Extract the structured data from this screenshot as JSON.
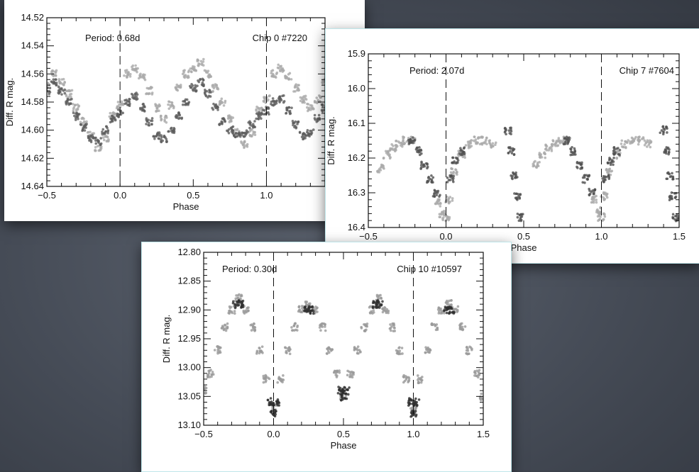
{
  "chart_data": [
    {
      "type": "scatter",
      "period_label": "Period: 0.68d",
      "chip_label": "Chip 0 #7220",
      "xlabel": "Phase",
      "ylabel": "Diff. R mag.",
      "xlim": [
        -0.5,
        1.4
      ],
      "ylim": [
        14.64,
        14.52
      ],
      "y_inverted": true,
      "xticks": [
        -0.5,
        0.0,
        0.5,
        1.0
      ],
      "xtick_labels": [
        "-0.5",
        "0.0",
        "0.5",
        "1.0"
      ],
      "yticks": [
        14.52,
        14.54,
        14.56,
        14.58,
        14.6,
        14.62,
        14.64
      ],
      "ytick_labels": [
        "14.52",
        "14.54",
        "14.56",
        "14.58",
        "14.60",
        "14.62",
        "14.64"
      ],
      "vlines": [
        0.0,
        1.0
      ],
      "series": [
        {
          "color": "#aaaaaa",
          "x": [
            -0.5,
            -0.45,
            -0.4,
            -0.35,
            -0.3,
            -0.25,
            -0.2,
            -0.15,
            -0.1,
            -0.05,
            0.0,
            0.05,
            0.1,
            0.15,
            0.2,
            0.25,
            0.3,
            0.35,
            0.4,
            0.45,
            0.5,
            0.55,
            0.6,
            0.65,
            0.7,
            0.75,
            0.8,
            0.85,
            0.9,
            0.95,
            1.0,
            1.05,
            1.1,
            1.15,
            1.2,
            1.25,
            1.3,
            1.35,
            1.4
          ],
          "y": [
            14.568,
            14.56,
            14.566,
            14.574,
            14.584,
            14.594,
            14.604,
            14.612,
            14.606,
            14.59,
            14.582,
            14.56,
            14.556,
            14.562,
            14.572,
            14.584,
            14.592,
            14.582,
            14.57,
            14.56,
            14.556,
            14.552,
            14.56,
            14.57,
            14.58,
            14.592,
            14.602,
            14.61,
            14.602,
            14.586,
            14.578,
            14.56,
            14.556,
            14.562,
            14.57,
            14.578,
            14.584,
            14.578,
            14.566
          ]
        },
        {
          "color": "#5c5c5c",
          "x": [
            -0.5,
            -0.45,
            -0.4,
            -0.35,
            -0.3,
            -0.25,
            -0.2,
            -0.15,
            -0.1,
            -0.05,
            0.0,
            0.05,
            0.1,
            0.15,
            0.2,
            0.25,
            0.3,
            0.35,
            0.4,
            0.45,
            0.5,
            0.55,
            0.6,
            0.65,
            0.7,
            0.75,
            0.8,
            0.85,
            0.9,
            0.95,
            1.0,
            1.05,
            1.1,
            1.15,
            1.2,
            1.25,
            1.3,
            1.35,
            1.4
          ],
          "y": [
            14.572,
            14.566,
            14.572,
            14.58,
            14.59,
            14.598,
            14.606,
            14.608,
            14.6,
            14.592,
            14.588,
            14.58,
            14.576,
            14.584,
            14.594,
            14.604,
            14.606,
            14.6,
            14.59,
            14.58,
            14.57,
            14.566,
            14.574,
            14.584,
            14.594,
            14.6,
            14.604,
            14.602,
            14.596,
            14.59,
            14.586,
            14.58,
            14.578,
            14.586,
            14.596,
            14.604,
            14.602,
            14.592,
            14.584
          ]
        }
      ]
    },
    {
      "type": "scatter",
      "period_label": "Period: 2.07d",
      "chip_label": "Chip 7 #7604",
      "xlabel": "Phase",
      "ylabel": "Diff. R mag.",
      "xlim": [
        -0.5,
        1.5
      ],
      "ylim": [
        16.4,
        15.9
      ],
      "y_inverted": true,
      "xticks": [
        -0.5,
        0.0,
        0.5,
        1.0,
        1.5
      ],
      "xtick_labels": [
        "-0.5",
        "0.0",
        "0.5",
        "1.0",
        "1.5"
      ],
      "yticks": [
        15.9,
        16.0,
        16.1,
        16.2,
        16.3,
        16.4
      ],
      "ytick_labels": [
        "15.9",
        "16.0",
        "16.1",
        "16.2",
        "16.3",
        "16.4"
      ],
      "vlines": [
        0.0,
        1.0
      ],
      "series": [
        {
          "color": "#aaaaaa",
          "x": [
            -0.42,
            -0.38,
            -0.34,
            -0.3,
            -0.26,
            -0.22,
            -0.05,
            -0.02,
            0.0,
            0.02,
            0.05,
            0.1,
            0.15,
            0.2,
            0.25,
            0.3,
            0.58,
            0.62,
            0.66,
            0.7,
            0.74,
            0.78,
            0.95,
            0.98,
            1.0,
            1.02,
            1.05,
            1.1,
            1.15,
            1.2,
            1.25,
            1.3
          ],
          "y": [
            16.23,
            16.19,
            16.17,
            16.16,
            16.15,
            16.15,
            16.33,
            16.36,
            16.37,
            16.32,
            16.24,
            16.19,
            16.16,
            16.15,
            16.15,
            16.16,
            16.22,
            16.19,
            16.17,
            16.16,
            16.15,
            16.15,
            16.32,
            16.35,
            16.37,
            16.31,
            16.24,
            16.19,
            16.16,
            16.15,
            16.15,
            16.16
          ]
        },
        {
          "color": "#505050",
          "x": [
            -0.22,
            -0.18,
            -0.14,
            -0.1,
            -0.06,
            0.03,
            0.06,
            0.1,
            0.4,
            0.42,
            0.44,
            0.46,
            0.48,
            0.78,
            0.82,
            0.86,
            0.9,
            0.94,
            1.03,
            1.06,
            1.1,
            1.4,
            1.42,
            1.44,
            1.46,
            1.48
          ],
          "y": [
            16.15,
            16.18,
            16.22,
            16.26,
            16.3,
            16.26,
            16.21,
            16.18,
            16.12,
            16.18,
            16.25,
            16.31,
            16.37,
            16.15,
            16.18,
            16.22,
            16.26,
            16.3,
            16.26,
            16.21,
            16.18,
            16.12,
            16.18,
            16.25,
            16.31,
            16.37
          ]
        }
      ]
    },
    {
      "type": "scatter",
      "period_label": "Period: 0.30d",
      "chip_label": "Chip 10 #10597",
      "xlabel": "Phase",
      "ylabel": "Diff. R mag.",
      "xlim": [
        -0.5,
        1.5
      ],
      "ylim": [
        13.1,
        12.8
      ],
      "y_inverted": true,
      "xticks": [
        -0.5,
        0.0,
        0.5,
        1.0,
        1.5
      ],
      "xtick_labels": [
        "-0.5",
        "0.0",
        "0.5",
        "1.0",
        "1.5"
      ],
      "yticks": [
        12.8,
        12.85,
        12.9,
        12.95,
        13.0,
        13.05,
        13.1
      ],
      "ytick_labels": [
        "12.80",
        "12.85",
        "12.90",
        "12.95",
        "13.00",
        "13.05",
        "13.10"
      ],
      "vlines": [
        0.0,
        1.0
      ],
      "series": [
        {
          "color": "#9a9a9a",
          "x": [
            -0.5,
            -0.45,
            -0.4,
            -0.35,
            -0.3,
            -0.25,
            -0.2,
            -0.15,
            -0.1,
            -0.05,
            0.0,
            0.05,
            0.1,
            0.15,
            0.2,
            0.25,
            0.3,
            0.35,
            0.4,
            0.45,
            0.5,
            0.55,
            0.6,
            0.65,
            0.7,
            0.75,
            0.8,
            0.85,
            0.9,
            0.95,
            1.0,
            1.05,
            1.1,
            1.15,
            1.2,
            1.25,
            1.3,
            1.35,
            1.4,
            1.45,
            1.5
          ],
          "y": [
            13.04,
            13.01,
            12.97,
            12.93,
            12.9,
            12.88,
            12.9,
            12.93,
            12.97,
            13.02,
            13.07,
            13.02,
            12.97,
            12.93,
            12.9,
            12.89,
            12.9,
            12.93,
            12.97,
            13.01,
            13.05,
            13.01,
            12.97,
            12.93,
            12.9,
            12.88,
            12.9,
            12.93,
            12.97,
            13.02,
            13.07,
            13.02,
            12.97,
            12.93,
            12.9,
            12.89,
            12.9,
            12.93,
            12.97,
            13.01,
            13.05
          ]
        },
        {
          "color": "#2e2e2e",
          "x": [
            -0.27,
            -0.24,
            -0.02,
            0.0,
            0.02,
            0.24,
            0.27,
            0.48,
            0.5,
            0.52,
            0.73,
            0.76,
            0.98,
            1.0,
            1.02,
            1.24,
            1.27
          ],
          "y": [
            12.89,
            12.89,
            13.06,
            13.08,
            13.06,
            12.9,
            12.9,
            13.04,
            13.05,
            13.04,
            12.89,
            12.89,
            13.06,
            13.08,
            13.06,
            12.9,
            12.9
          ]
        }
      ]
    }
  ]
}
